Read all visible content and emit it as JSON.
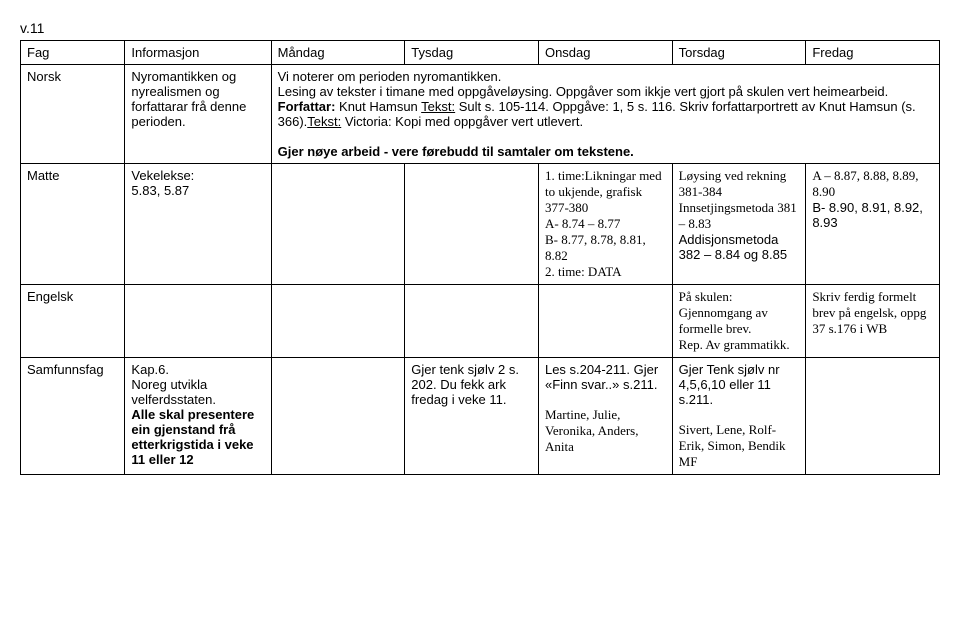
{
  "weekLabel": "v.11",
  "headers": {
    "fag": "Fag",
    "info": "Informasjon",
    "mon": "Måndag",
    "tue": "Tysdag",
    "wed": "Onsdag",
    "thu": "Torsdag",
    "fri": "Fredag"
  },
  "norsk": {
    "fag": "Norsk",
    "info": "Nyromantikken og nyrealismen og forfattarar frå denne perioden.",
    "row1_a": "Vi noterer om perioden nyromantikken.",
    "row1_b": "Lesing av tekster i timane med oppgåveløysing. Oppgåver som ikkje vert gjort på skulen vert heimearbeid.",
    "row1_c1": "Forfattar:",
    "row1_c2": " Knut Hamsun ",
    "row1_c3": "Tekst:",
    "row1_c4": " Sult s. 105-114. Oppgåve: 1, 5 s. 116. Skriv forfattarportrett av Knut Hamsun (s. 366).",
    "row1_c5": "Tekst:",
    "row1_c6": " Victoria: Kopi med oppgåver vert utlevert.",
    "row2": "Gjer nøye arbeid - vere førebudd til samtaler om tekstene."
  },
  "matte": {
    "fag": "Matte",
    "info1": "Vekelekse:",
    "info2": "5.83, 5.87",
    "wed1": "1. time:Likningar med to ukjende, grafisk 377-380",
    "wed2": "A- 8.74 – 8.77",
    "wed3": "B- 8.77, 8.78, 8.81, 8.82",
    "wed4": "2. time: DATA",
    "thu1": "Løysing ved rekning 381-384 Innsetjingsmetoda 381 – 8.83",
    "thu2": "Addisjonsmetoda 382 – 8.84 og 8.85",
    "fri1": "A – 8.87, 8.88, 8.89, 8.90",
    "fri2": "B- 8.90, 8.91, 8.92, 8.93"
  },
  "engelsk": {
    "fag": "Engelsk",
    "thu1": "På skulen:",
    "thu2": "Gjennomgang av formelle brev.",
    "thu3": "Rep. Av grammatikk.",
    "fri": "Skriv ferdig formelt brev på engelsk, oppg 37 s.176 i WB"
  },
  "samf": {
    "fag": "Samfunnsfag",
    "info_a": "Kap.6.",
    "info_b": "Noreg utvikla velferdsstaten.",
    "info_c": "Alle skal presentere ein gjenstand frå etterkrigstida i veke 11 eller 12",
    "tue": "Gjer tenk sjølv 2 s. 202. Du fekk ark fredag i veke 11.",
    "wed_a": "Les s.204-211. Gjer «Finn svar..» s.211.",
    "wed_b": "Martine, Julie, Veronika, Anders, Anita",
    "thu_a": "Gjer Tenk sjølv nr 4,5,6,10 eller 11 s.211.",
    "thu_b": "Sivert, Lene, Rolf-Erik, Simon, Bendik MF"
  }
}
